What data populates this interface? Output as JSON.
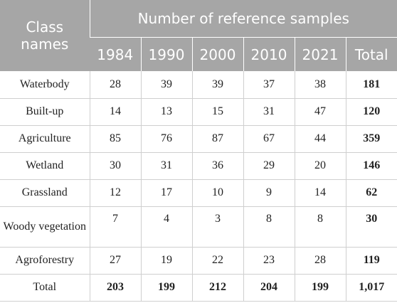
{
  "header": {
    "class_label": "Class names",
    "group_label": "Number of reference samples",
    "years": [
      "1984",
      "1990",
      "2000",
      "2010",
      "2021"
    ],
    "total_label": "Total"
  },
  "rows": [
    {
      "name": "Waterbody",
      "values": [
        "28",
        "39",
        "39",
        "37",
        "38"
      ],
      "total": "181"
    },
    {
      "name": "Built-up",
      "values": [
        "14",
        "13",
        "15",
        "31",
        "47"
      ],
      "total": "120"
    },
    {
      "name": "Agriculture",
      "values": [
        "85",
        "76",
        "87",
        "67",
        "44"
      ],
      "total": "359"
    },
    {
      "name": "Wetland",
      "values": [
        "30",
        "31",
        "36",
        "29",
        "20"
      ],
      "total": "146"
    },
    {
      "name": "Grassland",
      "values": [
        "12",
        "17",
        "10",
        "9",
        "14"
      ],
      "total": "62"
    },
    {
      "name": "Woody vegetation",
      "values": [
        "7",
        "4",
        "3",
        "8",
        "8"
      ],
      "total": "30"
    },
    {
      "name": "Agroforestry",
      "values": [
        "27",
        "19",
        "22",
        "23",
        "28"
      ],
      "total": "119"
    }
  ],
  "totals": {
    "name": "Total",
    "values": [
      "203",
      "199",
      "212",
      "204",
      "199"
    ],
    "total": "1,017"
  }
}
